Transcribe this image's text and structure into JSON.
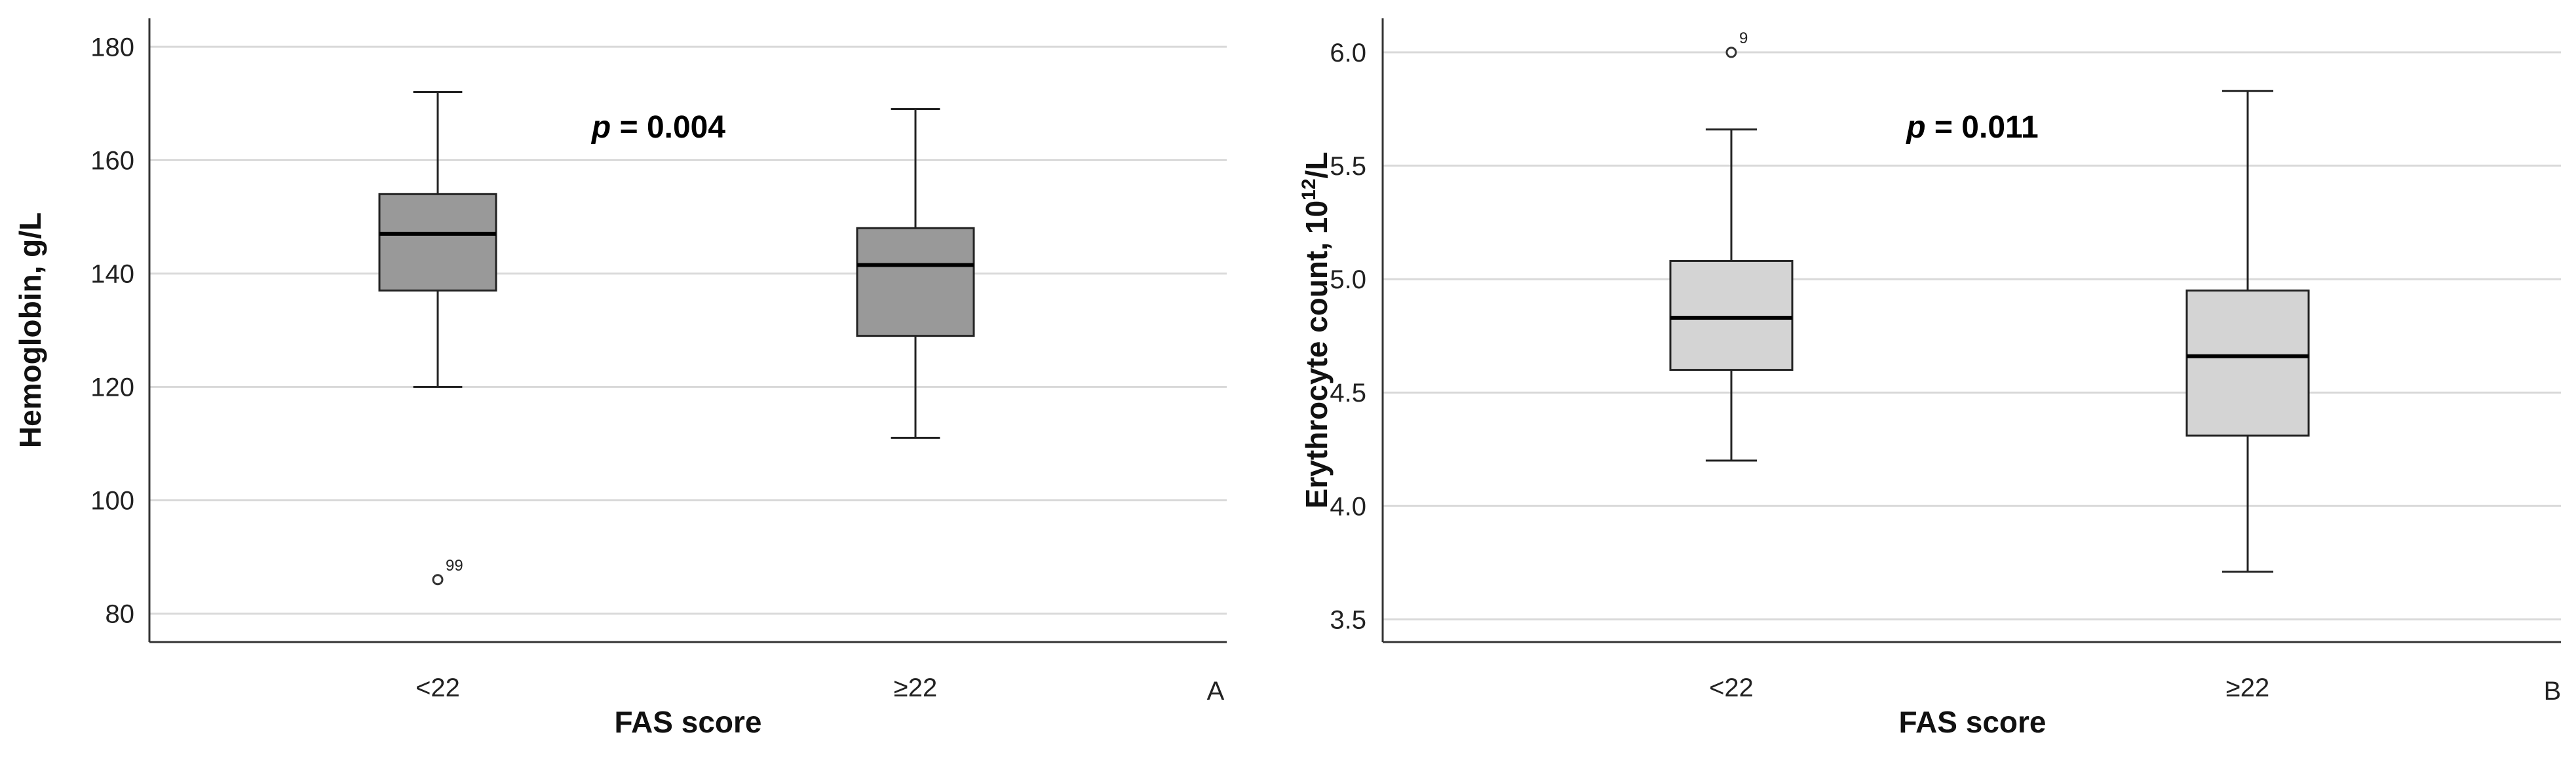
{
  "chart_data": [
    {
      "type": "box",
      "panel": "A",
      "xlabel": "FAS score",
      "ylabel": "Hemoglobin, g/L",
      "ylim": [
        75,
        185
      ],
      "yticks": [
        80,
        100,
        120,
        140,
        160,
        180
      ],
      "annotation": {
        "italic": "p",
        "rest": " = 0.004"
      },
      "box_color": "#999999",
      "categories": [
        "<22",
        "≥22"
      ],
      "boxes": [
        {
          "category": "<22",
          "min": 120,
          "q1": 137,
          "median": 147,
          "q3": 154,
          "max": 172,
          "outliers": [
            {
              "value": 86,
              "label": "99"
            }
          ]
        },
        {
          "category": "≥22",
          "min": 111,
          "q1": 129,
          "median": 141.5,
          "q3": 148,
          "max": 169,
          "outliers": []
        }
      ]
    },
    {
      "type": "box",
      "panel": "B",
      "xlabel": "FAS score",
      "ylabel": {
        "main": "Erythrocyte count, 10",
        "sup": "12",
        "tail": "/L"
      },
      "ylim": [
        3.4,
        6.15
      ],
      "yticks": [
        3.5,
        4.0,
        4.5,
        5.0,
        5.5,
        6.0
      ],
      "ytick_labels": [
        "3.5",
        "4.0",
        "4.5",
        "5.0",
        "5.5",
        "6.0"
      ],
      "annotation": {
        "italic": "p",
        "rest": " = 0.011"
      },
      "box_color": "#d4d4d4",
      "categories": [
        "<22",
        "≥22"
      ],
      "boxes": [
        {
          "category": "<22",
          "min": 4.2,
          "q1": 4.6,
          "median": 4.83,
          "q3": 5.08,
          "max": 5.66,
          "outliers": [
            {
              "value": 6.0,
              "label": "9"
            }
          ]
        },
        {
          "category": "≥22",
          "min": 3.71,
          "q1": 4.31,
          "median": 4.66,
          "q3": 4.95,
          "max": 5.83,
          "outliers": []
        }
      ]
    }
  ]
}
